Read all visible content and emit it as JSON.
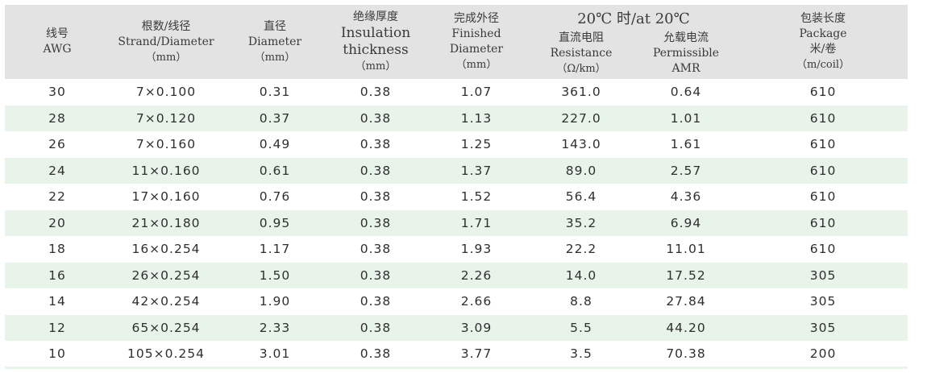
{
  "headers": {
    "awg": {
      "cn": "线号",
      "en": "AWG"
    },
    "strand": {
      "cn": "根数/线径",
      "en": "Strand/Diameter",
      "unit": "（mm）"
    },
    "diameter": {
      "cn": "直径",
      "en": "Diameter",
      "unit": "（mm）"
    },
    "insulation": {
      "cn": "绝缘厚度",
      "en1": "Insulation",
      "en2": "thickness",
      "unit": "（mm）"
    },
    "finished": {
      "cn": "完成外径",
      "en1": "Finished",
      "en2": "Diameter",
      "unit": "（mm）"
    },
    "group_title": "20℃  时/at 20℃",
    "resistance": {
      "cn": "直流电阻",
      "en": "Resistance",
      "unit": "（Ω/km）"
    },
    "current": {
      "cn": "允载电流",
      "en1": "Permissible",
      "en2": "AMR"
    },
    "package": {
      "cn": "包装长度",
      "en": "Package",
      "cn2": "米/卷",
      "unit": "（m/coil）"
    }
  },
  "rows": [
    [
      "30",
      "7×0.100",
      "0.31",
      "0.38",
      "1.07",
      "361.0",
      "0.64",
      "610"
    ],
    [
      "28",
      "7×0.120",
      "0.37",
      "0.38",
      "1.13",
      "227.0",
      "1.01",
      "610"
    ],
    [
      "26",
      "7×0.160",
      "0.49",
      "0.38",
      "1.25",
      "143.0",
      "1.61",
      "610"
    ],
    [
      "24",
      "11×0.160",
      "0.61",
      "0.38",
      "1.37",
      "89.0",
      "2.57",
      "610"
    ],
    [
      "22",
      "17×0.160",
      "0.76",
      "0.38",
      "1.52",
      "56.4",
      "4.36",
      "610"
    ],
    [
      "20",
      "21×0.180",
      "0.95",
      "0.38",
      "1.71",
      "35.2",
      "6.94",
      "610"
    ],
    [
      "18",
      "16×0.254",
      "1.17",
      "0.38",
      "1.93",
      "22.2",
      "11.01",
      "610"
    ],
    [
      "16",
      "26×0.254",
      "1.50",
      "0.38",
      "2.26",
      "14.0",
      "17.52",
      "305"
    ],
    [
      "14",
      "42×0.254",
      "1.90",
      "0.38",
      "2.66",
      "8.8",
      "27.84",
      "305"
    ],
    [
      "12",
      "65×0.254",
      "2.33",
      "0.38",
      "3.09",
      "5.5",
      "44.20",
      "305"
    ],
    [
      "10",
      "105×0.254",
      "3.01",
      "0.38",
      "3.77",
      "3.5",
      "70.38",
      "200"
    ]
  ]
}
